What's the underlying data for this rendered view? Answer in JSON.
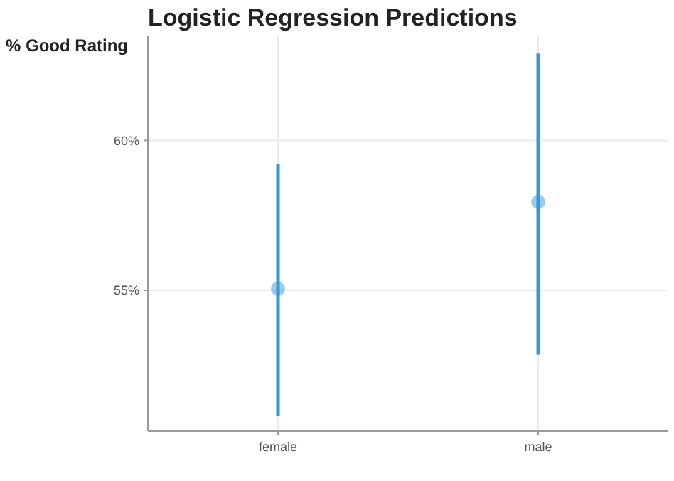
{
  "chart_data": {
    "type": "scatter",
    "title": "Logistic Regression Predictions",
    "ylabel": "% Good Rating",
    "categories": [
      "female",
      "male"
    ],
    "series": [
      {
        "color": "#3498db",
        "values": [
          55.05,
          57.95
        ],
        "errors": [
          [
            50.8,
            59.2
          ],
          [
            52.85,
            62.9
          ]
        ]
      }
    ],
    "ylim": [
      50.3,
      63.5
    ],
    "yticks": [
      {
        "value": 55,
        "label": "55%"
      },
      {
        "value": 60,
        "label": "60%"
      }
    ],
    "grid": true,
    "marker": "circle"
  }
}
